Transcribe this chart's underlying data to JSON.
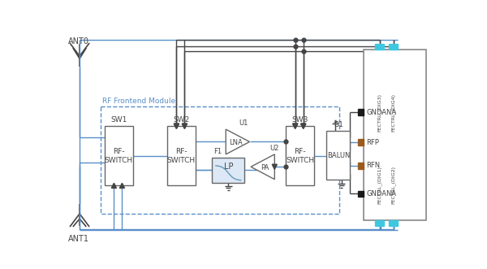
{
  "bg_color": "#ffffff",
  "line_blue": "#5b8fc9",
  "line_dark": "#444444",
  "line_gray": "#666666",
  "box_ec": "#666666",
  "dashed_color": "#5b8fc9",
  "cyan_color": "#3ec8e0",
  "brown_color": "#9c5a1d",
  "black_pin": "#1a1a1a",
  "ant0_label": "ANT0",
  "ant1_label": "ANT1",
  "sw1_label": "SW1",
  "sw2_label": "SW2",
  "sw3_label": "SW3",
  "b1_label": "B1",
  "u1_label": "U1",
  "u2_label": "U2",
  "f1_label": "F1",
  "rf_switch": "RF-\nSWITCH",
  "lna_label": "LNA",
  "pa_label": "PA",
  "lp_label": "LP",
  "balun_label": "BALUN",
  "rfp_label": "RFP",
  "rfn_label": "RFN",
  "gndana_label": "GNDANA",
  "fectrl_dig3": "FECTRL_(DIG3)",
  "fectrl_dig4": "FECTRL_(DIG4)",
  "fectrl_dig1": "FECTRL_(DIG1)",
  "fectrl_dig2": "FECTRL_(DIG2)",
  "rf_frontend": "RF Frontend Module"
}
